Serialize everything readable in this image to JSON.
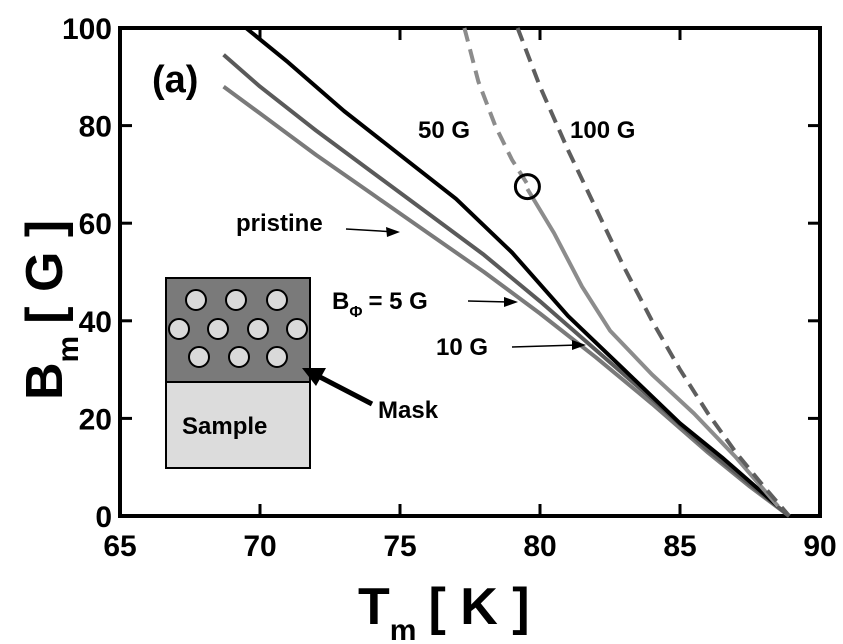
{
  "chart_data": {
    "type": "line",
    "title": "",
    "panel_label": "(a)",
    "xlabel": "T",
    "xlabel_sub": "m",
    "xlabel_unit": "[ K ]",
    "ylabel": "B",
    "ylabel_sub": "m",
    "ylabel_unit": "[ G ]",
    "xlim": [
      65,
      90
    ],
    "ylim": [
      0,
      100
    ],
    "xticks": [
      65,
      70,
      75,
      80,
      85,
      90
    ],
    "yticks": [
      0,
      20,
      40,
      60,
      80,
      100
    ],
    "grid": false,
    "series": [
      {
        "name": "pristine",
        "color": "#7a7a7a",
        "dash": false,
        "x": [
          68.7,
          70,
          72,
          74,
          76,
          78,
          80,
          82,
          84,
          86,
          87.5,
          88.9
        ],
        "y": [
          88,
          82.5,
          74,
          66,
          58,
          50,
          41.5,
          32.5,
          23,
          13,
          6,
          0
        ]
      },
      {
        "name": "B_Φ = 5 G",
        "color": "#5a5a5a",
        "dash": false,
        "x": [
          68.7,
          70,
          72,
          74,
          76,
          78,
          80,
          82,
          84,
          86,
          87.5,
          88.9
        ],
        "y": [
          94.5,
          88,
          79,
          70.5,
          62,
          53.5,
          44,
          34,
          24,
          13.5,
          6.5,
          0
        ]
      },
      {
        "name": "10 G",
        "color": "#000000",
        "dash": false,
        "x": [
          69.5,
          71,
          73,
          75,
          77,
          79,
          81,
          83,
          85,
          86.5,
          88.5
        ],
        "y": [
          100,
          93,
          83,
          74,
          65,
          54,
          41,
          30,
          19,
          12,
          2
        ]
      },
      {
        "name": "50 G",
        "color": "#8c8c8c",
        "dash": true,
        "x": [
          77.3,
          77.8,
          78.4,
          79.0,
          79.55
        ],
        "y": [
          100,
          89,
          80,
          73,
          68
        ]
      },
      {
        "name": "50 G",
        "color": "#8c8c8c",
        "dash": false,
        "x": [
          79.55,
          80.5,
          81.5,
          82.5,
          84,
          85.5,
          87,
          88.5
        ],
        "y": [
          67,
          58,
          47,
          38,
          29,
          21,
          12,
          2
        ]
      },
      {
        "name": "100 G",
        "color": "#5e5e5e",
        "dash": true,
        "x": [
          79.2,
          80.0,
          81.0,
          82.0,
          83.0,
          84.0,
          85.0,
          86.0,
          87.0,
          88.0,
          88.9
        ],
        "y": [
          100,
          88,
          75,
          63,
          51,
          40,
          30,
          21,
          13,
          6,
          0
        ]
      }
    ],
    "marker": {
      "type": "circle",
      "x": 79.55,
      "y": 67.5
    },
    "annotations": {
      "pristine": "pristine",
      "b_phi_main": "B",
      "b_phi_sub": "Φ",
      "b_phi_rest": "= 5 G",
      "ten_g": "10 G",
      "fifty_g": "50 G",
      "hundred_g": "100 G",
      "mask": "Mask",
      "sample": "Sample"
    }
  }
}
